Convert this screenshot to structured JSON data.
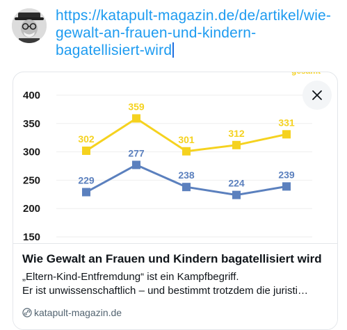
{
  "composer": {
    "url_text": "https://katapult-magazin.de/de/artikel/wie-gewalt-an-frauen-und-kindern-bagatellisiert-wird",
    "url_lines": [
      "https://katapult-magazin.de/de/artikel/wie-",
      "gewalt-an-frauen-und-kindern-",
      "bagatellisiert-wird"
    ]
  },
  "link_card": {
    "title": "Wie Gewalt an Frauen und Kindern bagatellisiert wird",
    "description_lines": [
      "„Eltern-Kind-Entfremdung“ ist ein Kampfbegriff.",
      "Er ist unwissenschaftlich – und bestimmt trotzdem die juristi…"
    ],
    "domain": "katapult-magazin.de",
    "close_icon": "close-icon",
    "link_icon": "link-icon"
  },
  "chart_data": {
    "type": "line",
    "title": "",
    "xlabel": "",
    "ylabel": "",
    "ylim": [
      150,
      400
    ],
    "yticks": [
      150,
      200,
      250,
      300,
      350,
      400
    ],
    "x": [
      1,
      2,
      3,
      4,
      5
    ],
    "series": [
      {
        "name": "gesamt",
        "color": "#f5d21f",
        "values": [
          302,
          359,
          301,
          312,
          331
        ]
      },
      {
        "color": "#5b80be",
        "values": [
          229,
          277,
          238,
          224,
          239
        ]
      }
    ]
  }
}
